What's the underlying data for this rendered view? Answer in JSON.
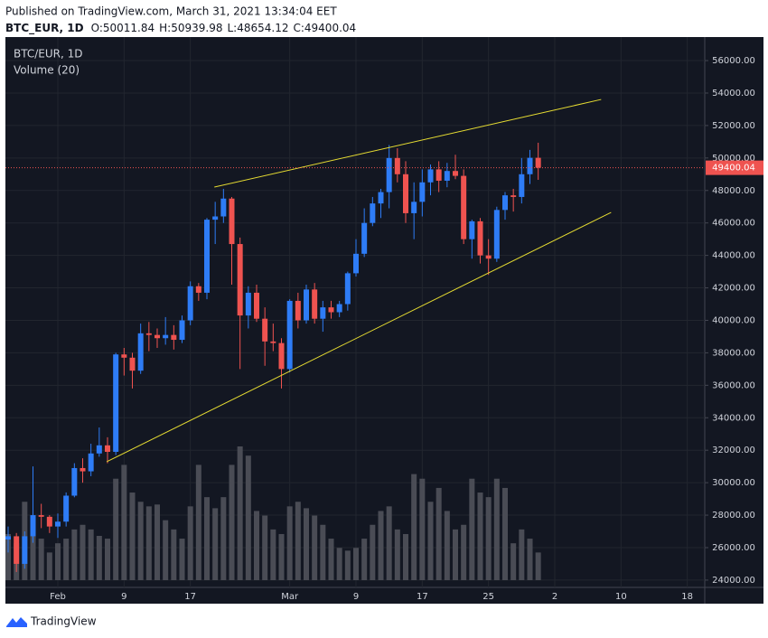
{
  "chart_data": {
    "type": "candlestick",
    "published": "Published on TradingView.com, March 31, 2021 13:34:04 EET",
    "title": "BTC_EUR, 1D",
    "ohlc_labels": [
      "O:",
      "H:",
      "L:",
      "C:"
    ],
    "legend_title": "BTC/EUR, 1D",
    "indicator": "Volume (20)",
    "brand": "TradingView",
    "categories": [
      null,
      null,
      null,
      null,
      null,
      null,
      "Feb",
      null,
      null,
      null,
      null,
      null,
      null,
      null,
      "9",
      null,
      null,
      null,
      null,
      null,
      null,
      null,
      "17",
      null,
      null,
      null,
      null,
      null,
      null,
      null,
      null,
      null,
      null,
      null,
      "Mar",
      null,
      null,
      null,
      null,
      null,
      null,
      null,
      "9",
      null,
      null,
      null,
      null,
      null,
      null,
      null,
      "17",
      null,
      null,
      null,
      null,
      null,
      null,
      null,
      "25",
      null,
      null,
      null,
      null,
      null,
      null,
      null,
      "2",
      null,
      null,
      null,
      null,
      null,
      null,
      null,
      "10",
      null,
      null,
      null,
      null,
      null,
      null,
      null,
      "18",
      null,
      null
    ],
    "open": [
      26500,
      26700,
      25000,
      26700,
      28000,
      27900,
      27300,
      27600,
      29200,
      30900,
      30700,
      31800,
      32300,
      31900,
      37900,
      37700,
      36900,
      39200,
      39100,
      38900,
      39100,
      38800,
      40000,
      42100,
      41700,
      46200,
      46400,
      47500,
      44700,
      40300,
      41700,
      40100,
      38700,
      38600,
      37000,
      41200,
      40000,
      41900,
      40100,
      40800,
      40500,
      41000,
      42900,
      44100,
      46000,
      47200,
      47900,
      50000,
      49000,
      46600,
      47300,
      48500,
      49300,
      48600,
      49200,
      48900,
      45000,
      46100,
      44000,
      43800,
      46800,
      47700,
      47600,
      49000,
      50011.84,
      null,
      null,
      null,
      null,
      null,
      null,
      null,
      null,
      null,
      null,
      null,
      null,
      null,
      null,
      null,
      null,
      null,
      null,
      null,
      null
    ],
    "high": [
      27300,
      26900,
      27000,
      31000,
      28700,
      28000,
      28100,
      29400,
      31200,
      31500,
      32400,
      33400,
      32800,
      38000,
      38300,
      38000,
      39800,
      39900,
      39500,
      40200,
      39700,
      40300,
      42400,
      42300,
      46300,
      47300,
      48100,
      47600,
      45100,
      42100,
      42200,
      40800,
      39800,
      38900,
      41300,
      41700,
      42200,
      42300,
      41200,
      41200,
      41200,
      43000,
      45000,
      46900,
      47600,
      48100,
      50800,
      50600,
      49800,
      48500,
      49300,
      49600,
      49800,
      49700,
      50200,
      49300,
      46200,
      46300,
      45000,
      47000,
      47900,
      48100,
      50000,
      50500,
      50939.98,
      null,
      null,
      null,
      null,
      null,
      null,
      null,
      null,
      null,
      null,
      null,
      null,
      null,
      null,
      null,
      null,
      null,
      null,
      null,
      null
    ],
    "low": [
      25700,
      24500,
      24700,
      26300,
      27200,
      26900,
      26600,
      27300,
      29100,
      30000,
      30400,
      31600,
      31200,
      31700,
      36600,
      35800,
      36700,
      38100,
      38300,
      38500,
      38200,
      38600,
      39700,
      41200,
      41300,
      44700,
      46000,
      42200,
      37000,
      39500,
      39900,
      37200,
      38100,
      35800,
      36800,
      39500,
      39800,
      39800,
      39300,
      40100,
      40200,
      40600,
      42700,
      43900,
      45800,
      46300,
      46900,
      48500,
      46000,
      45000,
      46400,
      47700,
      47900,
      48200,
      48700,
      44700,
      43800,
      43500,
      42800,
      43600,
      46200,
      46700,
      47200,
      48400,
      48654.12,
      null,
      null,
      null,
      null,
      null,
      null,
      null,
      null,
      null,
      null,
      null,
      null,
      null,
      null,
      null,
      null,
      null,
      null,
      null,
      null
    ],
    "close": [
      26700,
      25000,
      26700,
      28000,
      27900,
      27300,
      27600,
      29200,
      30900,
      30700,
      31800,
      32300,
      31900,
      37900,
      37700,
      36900,
      39200,
      39100,
      38900,
      39100,
      38800,
      40000,
      42100,
      41700,
      46200,
      46400,
      47500,
      44700,
      40300,
      41700,
      40100,
      38700,
      38600,
      37000,
      41200,
      40000,
      41900,
      40100,
      40800,
      40500,
      41000,
      42900,
      44100,
      46000,
      47200,
      47900,
      50000,
      49000,
      46600,
      47300,
      48500,
      49300,
      48600,
      49200,
      48900,
      45000,
      46100,
      44000,
      43800,
      46800,
      47700,
      47600,
      49000,
      50011.84,
      49400.04,
      null,
      null,
      null,
      null,
      null,
      null,
      null,
      null,
      null,
      null,
      null,
      null,
      null,
      null,
      null,
      null,
      null,
      null,
      null,
      null
    ],
    "volume": [
      50,
      40,
      85,
      60,
      45,
      30,
      40,
      45,
      55,
      60,
      55,
      48,
      45,
      110,
      125,
      95,
      85,
      80,
      82,
      65,
      55,
      45,
      80,
      125,
      90,
      78,
      90,
      125,
      145,
      135,
      75,
      70,
      55,
      50,
      80,
      85,
      78,
      70,
      60,
      45,
      35,
      32,
      35,
      45,
      60,
      75,
      80,
      55,
      50,
      115,
      110,
      85,
      100,
      75,
      55,
      60,
      110,
      95,
      90,
      110,
      100,
      40,
      55,
      45,
      30,
      null,
      null,
      null,
      null,
      null,
      null,
      null,
      null,
      null,
      null,
      null,
      null,
      null,
      null,
      null,
      null,
      null,
      null,
      null,
      null
    ],
    "up_color": "#2e7cf6",
    "down_color": "#ef5350",
    "volume_color": "#4a4c55",
    "trend_line_color": "#e6dc32",
    "trend_lines": [
      {
        "x": [
          24.9,
          71.6
        ],
        "y": [
          48207,
          53606
        ]
      },
      {
        "x": [
          11.9,
          72.8
        ],
        "y": [
          31290,
          46650
        ]
      }
    ],
    "ylim": [
      23550,
      57450
    ],
    "yticks": [
      {
        "value": 24000,
        "label": "24000.00"
      },
      {
        "value": 26000,
        "label": "26000.00"
      },
      {
        "value": 28000,
        "label": "28000.00"
      },
      {
        "value": 30000,
        "label": "30000.00"
      },
      {
        "value": 32000,
        "label": "32000.00"
      },
      {
        "value": 34000,
        "label": "34000.00"
      },
      {
        "value": 36000,
        "label": "36000.00"
      },
      {
        "value": 38000,
        "label": "38000.00"
      },
      {
        "value": 40000,
        "label": "40000.00"
      },
      {
        "value": 42000,
        "label": "42000.00"
      },
      {
        "value": 44000,
        "label": "44000.00"
      },
      {
        "value": 46000,
        "label": "46000.00"
      },
      {
        "value": 48000,
        "label": "48000.00"
      },
      {
        "value": 50000,
        "label": "50000.00"
      },
      {
        "value": 52000,
        "label": "52000.00"
      },
      {
        "value": 54000,
        "label": "54000.00"
      },
      {
        "value": 56000,
        "label": "56000.00"
      }
    ],
    "grid": true
  }
}
